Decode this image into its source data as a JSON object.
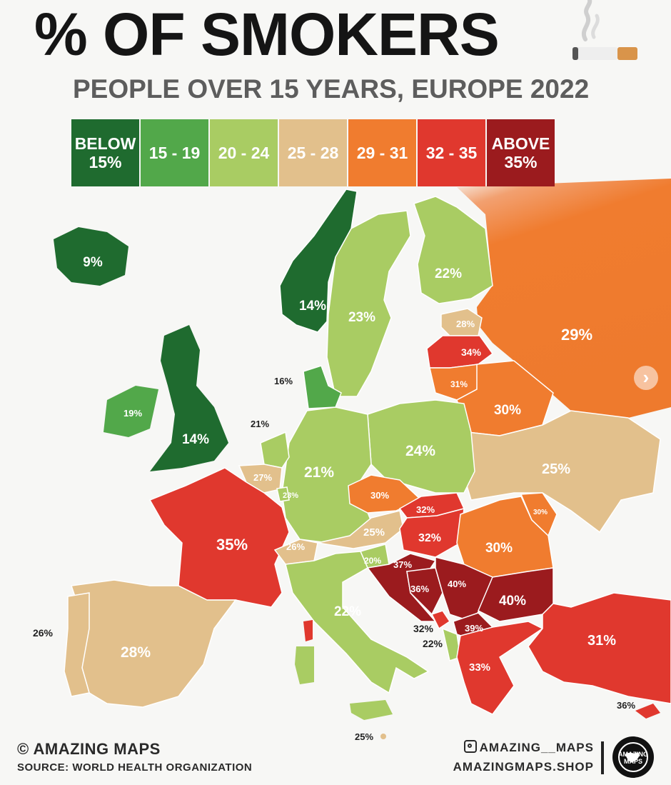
{
  "title": "% OF SMOKERS",
  "subtitle": "PEOPLE OVER 15 YEARS, EUROPE 2022",
  "legend": [
    {
      "label": "BELOW\n15%",
      "color": "#1f6b2f"
    },
    {
      "label": "15 - 19",
      "color": "#52a84a"
    },
    {
      "label": "20 - 24",
      "color": "#a9cc63"
    },
    {
      "label": "25 - 28",
      "color": "#e2c08c"
    },
    {
      "label": "29 - 31",
      "color": "#f07c2f"
    },
    {
      "label": "32 - 35",
      "color": "#e0382e"
    },
    {
      "label": "ABOVE\n35%",
      "color": "#9b1b1e"
    }
  ],
  "labels": {
    "iceland": "9%",
    "norway": "14%",
    "sweden": "23%",
    "finland": "22%",
    "estonia": "28%",
    "latvia": "34%",
    "lithuania": "31%",
    "russia": "29%",
    "belarus": "30%",
    "denmark": "16%",
    "ireland": "19%",
    "uk": "14%",
    "netherlands": "21%",
    "belgium": "27%",
    "luxembourg": "23%",
    "germany": "21%",
    "poland": "24%",
    "ukraine": "25%",
    "czechia": "30%",
    "slovakia": "32%",
    "austria": "25%",
    "hungary": "32%",
    "moldova": "30%",
    "romania": "30%",
    "france": "35%",
    "switzerland": "26%",
    "slovenia": "20%",
    "croatia": "37%",
    "bosnia": "36%",
    "serbia": "40%",
    "bulgaria": "40%",
    "montenegro": "32%",
    "albania": "22%",
    "north_macedonia": "39%",
    "greece": "33%",
    "turkey": "31%",
    "cyprus": "36%",
    "italy": "22%",
    "portugal": "26%",
    "spain": "28%",
    "malta": "25%"
  },
  "credit": "© AMAZING MAPS",
  "source": "SOURCE: WORLD HEALTH ORGANIZATION",
  "instagram": "AMAZING__MAPS",
  "shop": "AMAZINGMAPS.SHOP",
  "logo_text": "AMAZING MAPS"
}
